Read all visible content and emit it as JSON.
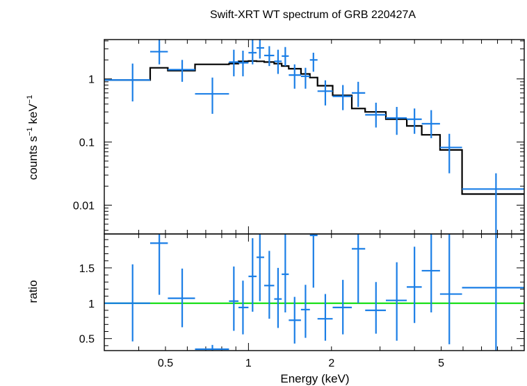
{
  "chart_data": {
    "type": "scatter",
    "title": "Swift-XRT WT spectrum of GRB 220427A",
    "xlabel": "Energy (keV)",
    "xscale": "log",
    "xlim": [
      0.3,
      10
    ],
    "x_ticks": [
      {
        "v": 0.5,
        "label": "0.5"
      },
      {
        "v": 1,
        "label": "1"
      },
      {
        "v": 2,
        "label": "2"
      },
      {
        "v": 5,
        "label": "5"
      }
    ],
    "colors": {
      "data": "#1a7ee6",
      "model": "#000000",
      "unity": "#22e022"
    },
    "panels": [
      {
        "name": "spectrum",
        "ylabel": "counts s",
        "ylabel_sup1": "−1",
        "ylabel_mid": " keV",
        "ylabel_sup2": "−1",
        "yscale": "log",
        "ylim": [
          0.0035,
          4.2
        ],
        "y_ticks": [
          {
            "v": 0.01,
            "label": "0.01"
          },
          {
            "v": 0.1,
            "label": "0.1"
          },
          {
            "v": 1,
            "label": "1"
          }
        ],
        "points": [
          {
            "x": 0.38,
            "xlo": 0.3,
            "xhi": 0.44,
            "y": 0.96,
            "ylo": 0.44,
            "yhi": 1.75
          },
          {
            "x": 0.475,
            "xlo": 0.44,
            "xhi": 0.51,
            "y": 2.7,
            "ylo": 1.7,
            "yhi": 4.2
          },
          {
            "x": 0.575,
            "xlo": 0.51,
            "xhi": 0.64,
            "y": 1.4,
            "ylo": 0.9,
            "yhi": 2.0
          },
          {
            "x": 0.74,
            "xlo": 0.64,
            "xhi": 0.85,
            "y": 0.58,
            "ylo": 0.28,
            "yhi": 1.05
          },
          {
            "x": 0.885,
            "xlo": 0.85,
            "xhi": 0.92,
            "y": 1.85,
            "ylo": 1.1,
            "yhi": 2.9
          },
          {
            "x": 0.955,
            "xlo": 0.92,
            "xhi": 1.0,
            "y": 1.8,
            "ylo": 1.1,
            "yhi": 2.8
          },
          {
            "x": 1.035,
            "xlo": 1.0,
            "xhi": 1.07,
            "y": 2.6,
            "ylo": 1.7,
            "yhi": 4.2
          },
          {
            "x": 1.1,
            "xlo": 1.07,
            "xhi": 1.14,
            "y": 3.1,
            "ylo": 2.1,
            "yhi": 4.2
          },
          {
            "x": 1.19,
            "xlo": 1.14,
            "xhi": 1.24,
            "y": 2.35,
            "ylo": 1.6,
            "yhi": 3.3
          },
          {
            "x": 1.28,
            "xlo": 1.24,
            "xhi": 1.32,
            "y": 1.9,
            "ylo": 1.2,
            "yhi": 2.9
          },
          {
            "x": 1.36,
            "xlo": 1.32,
            "xhi": 1.4,
            "y": 2.3,
            "ylo": 1.6,
            "yhi": 3.2
          },
          {
            "x": 1.47,
            "xlo": 1.4,
            "xhi": 1.55,
            "y": 1.15,
            "ylo": 0.7,
            "yhi": 1.7
          },
          {
            "x": 1.61,
            "xlo": 1.55,
            "xhi": 1.67,
            "y": 1.1,
            "ylo": 0.7,
            "yhi": 1.5
          },
          {
            "x": 1.72,
            "xlo": 1.67,
            "xhi": 1.78,
            "y": 2.0,
            "ylo": 1.3,
            "yhi": 2.6
          },
          {
            "x": 1.9,
            "xlo": 1.78,
            "xhi": 2.02,
            "y": 0.64,
            "ylo": 0.38,
            "yhi": 0.95
          },
          {
            "x": 2.2,
            "xlo": 2.02,
            "xhi": 2.37,
            "y": 0.53,
            "ylo": 0.32,
            "yhi": 0.8
          },
          {
            "x": 2.5,
            "xlo": 2.37,
            "xhi": 2.65,
            "y": 0.6,
            "ylo": 0.36,
            "yhi": 0.9
          },
          {
            "x": 2.9,
            "xlo": 2.65,
            "xhi": 3.15,
            "y": 0.27,
            "ylo": 0.17,
            "yhi": 0.42
          },
          {
            "x": 3.45,
            "xlo": 3.15,
            "xhi": 3.75,
            "y": 0.24,
            "ylo": 0.13,
            "yhi": 0.36
          },
          {
            "x": 4.0,
            "xlo": 3.75,
            "xhi": 4.25,
            "y": 0.23,
            "ylo": 0.135,
            "yhi": 0.34
          },
          {
            "x": 4.6,
            "xlo": 4.25,
            "xhi": 4.95,
            "y": 0.195,
            "ylo": 0.115,
            "yhi": 0.32
          },
          {
            "x": 5.35,
            "xlo": 4.95,
            "xhi": 5.95,
            "y": 0.082,
            "ylo": 0.032,
            "yhi": 0.135
          },
          {
            "x": 7.9,
            "xlo": 5.95,
            "xhi": 10.0,
            "y": 0.018,
            "ylo": 0.0035,
            "yhi": 0.032
          }
        ],
        "model_step": [
          {
            "x1": 0.3,
            "x2": 0.44,
            "y": 0.96
          },
          {
            "x1": 0.44,
            "x2": 0.51,
            "y": 1.5
          },
          {
            "x1": 0.51,
            "x2": 0.64,
            "y": 1.35
          },
          {
            "x1": 0.64,
            "x2": 0.85,
            "y": 1.7
          },
          {
            "x1": 0.85,
            "x2": 0.92,
            "y": 1.75
          },
          {
            "x1": 0.92,
            "x2": 1.0,
            "y": 1.9
          },
          {
            "x1": 1.0,
            "x2": 1.07,
            "y": 1.92
          },
          {
            "x1": 1.07,
            "x2": 1.14,
            "y": 1.9
          },
          {
            "x1": 1.14,
            "x2": 1.24,
            "y": 1.85
          },
          {
            "x1": 1.24,
            "x2": 1.32,
            "y": 1.75
          },
          {
            "x1": 1.32,
            "x2": 1.4,
            "y": 1.6
          },
          {
            "x1": 1.4,
            "x2": 1.55,
            "y": 1.45
          },
          {
            "x1": 1.55,
            "x2": 1.67,
            "y": 1.2
          },
          {
            "x1": 1.67,
            "x2": 1.78,
            "y": 1.05
          },
          {
            "x1": 1.78,
            "x2": 2.02,
            "y": 0.78
          },
          {
            "x1": 2.02,
            "x2": 2.37,
            "y": 0.55
          },
          {
            "x1": 2.37,
            "x2": 2.65,
            "y": 0.34
          },
          {
            "x1": 2.65,
            "x2": 3.15,
            "y": 0.3
          },
          {
            "x1": 3.15,
            "x2": 3.75,
            "y": 0.23
          },
          {
            "x1": 3.75,
            "x2": 4.25,
            "y": 0.18
          },
          {
            "x1": 4.25,
            "x2": 4.95,
            "y": 0.13
          },
          {
            "x1": 4.95,
            "x2": 5.95,
            "y": 0.075
          },
          {
            "x1": 5.95,
            "x2": 10.0,
            "y": 0.015
          }
        ]
      },
      {
        "name": "ratio",
        "ylabel": "ratio",
        "yscale": "linear",
        "ylim": [
          0.33,
          1.98
        ],
        "y_ticks": [
          {
            "v": 0.5,
            "label": "0.5"
          },
          {
            "v": 1,
            "label": "1"
          },
          {
            "v": 1.5,
            "label": "1.5"
          }
        ],
        "reference_line": 1,
        "points": [
          {
            "x": 0.38,
            "xlo": 0.3,
            "xhi": 0.44,
            "y": 1.0,
            "ylo": 0.46,
            "yhi": 1.55
          },
          {
            "x": 0.475,
            "xlo": 0.44,
            "xhi": 0.51,
            "y": 1.85,
            "ylo": 1.12,
            "yhi": 1.98
          },
          {
            "x": 0.575,
            "xlo": 0.51,
            "xhi": 0.64,
            "y": 1.07,
            "ylo": 0.66,
            "yhi": 1.49
          },
          {
            "x": 0.74,
            "xlo": 0.64,
            "xhi": 0.85,
            "y": 0.35,
            "ylo": 0.33,
            "yhi": 0.41
          },
          {
            "x": 0.885,
            "xlo": 0.85,
            "xhi": 0.92,
            "y": 1.03,
            "ylo": 0.61,
            "yhi": 1.52
          },
          {
            "x": 0.955,
            "xlo": 0.92,
            "xhi": 1.0,
            "y": 0.94,
            "ylo": 0.56,
            "yhi": 1.32
          },
          {
            "x": 1.035,
            "xlo": 1.0,
            "xhi": 1.07,
            "y": 1.38,
            "ylo": 0.88,
            "yhi": 1.92
          },
          {
            "x": 1.1,
            "xlo": 1.07,
            "xhi": 1.14,
            "y": 1.65,
            "ylo": 1.03,
            "yhi": 1.98
          },
          {
            "x": 1.19,
            "xlo": 1.14,
            "xhi": 1.24,
            "y": 1.25,
            "ylo": 0.78,
            "yhi": 1.74
          },
          {
            "x": 1.28,
            "xlo": 1.24,
            "xhi": 1.32,
            "y": 1.06,
            "ylo": 0.65,
            "yhi": 1.5
          },
          {
            "x": 1.36,
            "xlo": 1.32,
            "xhi": 1.4,
            "y": 1.41,
            "ylo": 0.87,
            "yhi": 1.98
          },
          {
            "x": 1.47,
            "xlo": 1.4,
            "xhi": 1.55,
            "y": 0.76,
            "ylo": 0.43,
            "yhi": 1.09
          },
          {
            "x": 1.61,
            "xlo": 1.55,
            "xhi": 1.67,
            "y": 0.91,
            "ylo": 0.51,
            "yhi": 1.26
          },
          {
            "x": 1.72,
            "xlo": 1.67,
            "xhi": 1.78,
            "y": 1.96,
            "ylo": 1.22,
            "yhi": 1.98
          },
          {
            "x": 1.9,
            "xlo": 1.78,
            "xhi": 2.02,
            "y": 0.78,
            "ylo": 0.47,
            "yhi": 1.13
          },
          {
            "x": 2.2,
            "xlo": 2.02,
            "xhi": 2.37,
            "y": 0.94,
            "ylo": 0.56,
            "yhi": 1.33
          },
          {
            "x": 2.5,
            "xlo": 2.37,
            "xhi": 2.65,
            "y": 1.77,
            "ylo": 1.0,
            "yhi": 1.98
          },
          {
            "x": 2.9,
            "xlo": 2.65,
            "xhi": 3.15,
            "y": 0.9,
            "ylo": 0.57,
            "yhi": 1.3
          },
          {
            "x": 3.45,
            "xlo": 3.15,
            "xhi": 3.75,
            "y": 1.04,
            "ylo": 0.47,
            "yhi": 1.58
          },
          {
            "x": 4.0,
            "xlo": 3.75,
            "xhi": 4.25,
            "y": 1.23,
            "ylo": 0.72,
            "yhi": 1.8
          },
          {
            "x": 4.6,
            "xlo": 4.25,
            "xhi": 4.95,
            "y": 1.46,
            "ylo": 0.87,
            "yhi": 1.98
          },
          {
            "x": 5.35,
            "xlo": 4.95,
            "xhi": 5.95,
            "y": 1.13,
            "ylo": 0.42,
            "yhi": 1.98
          },
          {
            "x": 7.9,
            "xlo": 5.95,
            "xhi": 10.0,
            "y": 1.22,
            "ylo": 0.33,
            "yhi": 1.98
          }
        ]
      }
    ]
  }
}
